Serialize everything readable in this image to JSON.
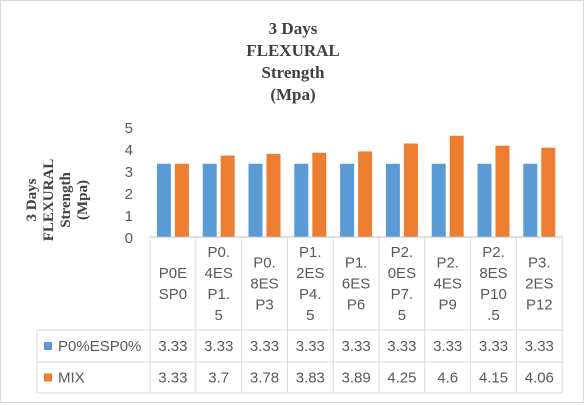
{
  "chart_data": {
    "type": "bar",
    "title": "3 Days FLEXURAL Strength (Mpa)",
    "title_lines": [
      "3 Days",
      "FLEXURAL",
      "Strength",
      "(Mpa)"
    ],
    "ylabel": "3 Days FLEXURAL Strength (Mpa)",
    "ylabel_lines": [
      "3 Days",
      "FLEXURAL",
      "Strength",
      "(Mpa)"
    ],
    "xlabel": "",
    "ylim": [
      0,
      5
    ],
    "yticks": [
      0,
      1,
      2,
      3,
      4,
      5
    ],
    "grid": false,
    "legend": "data-table",
    "categories": [
      [
        "P0E",
        "SP0"
      ],
      [
        "P0.",
        "4ES",
        "P1.",
        "5"
      ],
      [
        "P0.",
        "8ES",
        "P3"
      ],
      [
        "P1.",
        "2ES",
        "P4.",
        "5"
      ],
      [
        "P1.",
        "6ES",
        "P6"
      ],
      [
        "P2.",
        "0ES",
        "P7.",
        "5"
      ],
      [
        "P2.",
        "4ES",
        "P9"
      ],
      [
        "P2.",
        "8ES",
        "P10",
        ".5"
      ],
      [
        "P3.",
        "2ES",
        "P12"
      ]
    ],
    "series": [
      {
        "name": "P0%ESP0%",
        "color": "#5b9bd5",
        "values": [
          3.33,
          3.33,
          3.33,
          3.33,
          3.33,
          3.33,
          3.33,
          3.33,
          3.33
        ]
      },
      {
        "name": "MIX",
        "color": "#ed7d31",
        "values": [
          3.33,
          3.7,
          3.78,
          3.83,
          3.89,
          4.25,
          4.6,
          4.15,
          4.06
        ]
      }
    ]
  }
}
